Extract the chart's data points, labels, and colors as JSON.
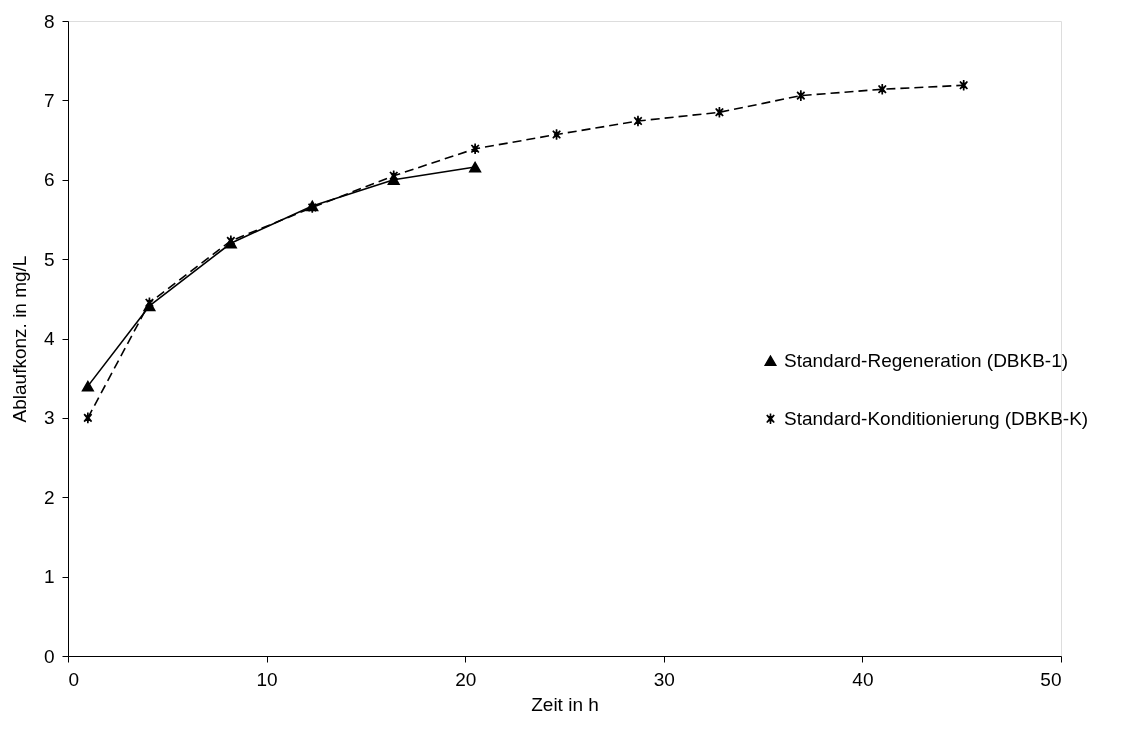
{
  "chart_data": {
    "type": "line",
    "xlabel": "Zeit in h",
    "ylabel": "Ablaufkonz. in mg/L",
    "xlim": [
      0,
      50
    ],
    "xticks": [
      0,
      10,
      20,
      30,
      40,
      50
    ],
    "ylim": [
      0,
      8
    ],
    "yticks": [
      0,
      1,
      2,
      3,
      4,
      5,
      6,
      7,
      8
    ],
    "grid": false,
    "legend": "right",
    "series": [
      {
        "name": "Standard-Regeneration (DBKB-1)",
        "color": "#000000",
        "marker": "triangle",
        "line_style": "solid",
        "x": [
          1.0,
          4.1,
          8.2,
          12.3,
          16.4,
          20.5
        ],
        "values": [
          3.4,
          4.41,
          5.2,
          5.67,
          6.0,
          6.16
        ]
      },
      {
        "name": "Standard-Konditionierung (DBKB-K)",
        "color": "#000000",
        "marker": "cross",
        "line_style": "dashed",
        "x": [
          1.0,
          4.1,
          8.2,
          12.3,
          16.4,
          20.5,
          24.6,
          28.7,
          32.8,
          36.9,
          41.0,
          45.1
        ],
        "values": [
          3.0,
          4.45,
          5.23,
          5.65,
          6.05,
          6.39,
          6.57,
          6.74,
          6.85,
          7.06,
          7.14,
          7.19
        ]
      }
    ]
  }
}
